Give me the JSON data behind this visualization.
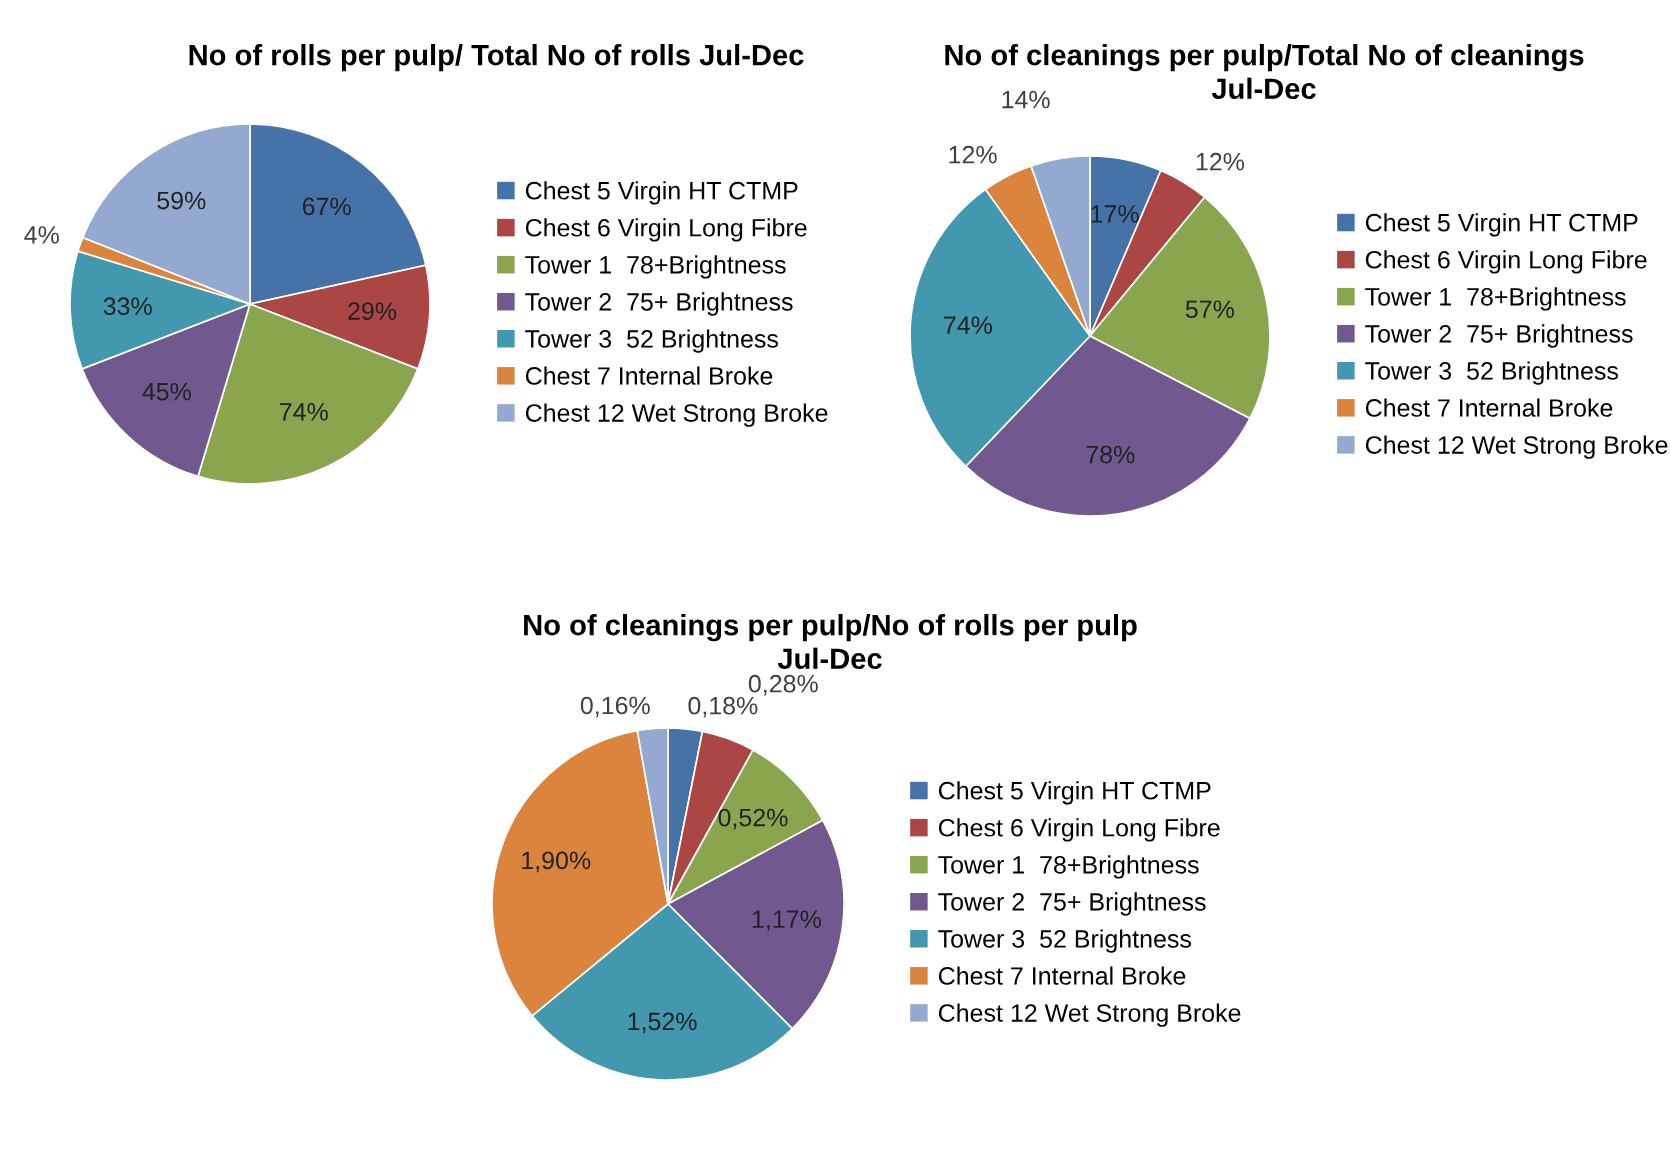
{
  "chart_data": [
    {
      "type": "pie",
      "title": "No of rolls per pulp/ Total No of rolls Jul-Dec",
      "categories": [
        "Chest 5 Virgin HT CTMP",
        "Chest 6 Virgin Long Fibre",
        "Tower 1  78+Brightness",
        "Tower 2  75+ Brightness",
        "Tower 3  52 Brightness",
        "Chest 7 Internal Broke",
        "Chest 12 Wet Strong Broke"
      ],
      "values": [
        67,
        29,
        74,
        45,
        33,
        4,
        59
      ],
      "value_labels": [
        "67%",
        "29%",
        "74%",
        "45%",
        "33%",
        "4%",
        "59%"
      ],
      "colors": [
        "#4572a7",
        "#aa4643",
        "#89a54e",
        "#71588f",
        "#4198af",
        "#db843d",
        "#93a9cf"
      ],
      "legend": "right"
    },
    {
      "type": "pie",
      "title": "No of cleanings per pulp/Total No of cleanings\nJul-Dec",
      "categories": [
        "Chest 5 Virgin HT CTMP",
        "Chest 6 Virgin Long Fibre",
        "Tower 1  78+Brightness",
        "Tower 2  75+ Brightness",
        "Tower 3  52 Brightness",
        "Chest 7 Internal Broke",
        "Chest 12 Wet Strong Broke"
      ],
      "values": [
        17,
        12,
        57,
        78,
        74,
        12,
        14
      ],
      "value_labels": [
        "17%",
        "12%",
        "57%",
        "78%",
        "74%",
        "12%",
        "14%"
      ],
      "colors": [
        "#4572a7",
        "#aa4643",
        "#89a54e",
        "#71588f",
        "#4198af",
        "#db843d",
        "#93a9cf"
      ],
      "legend": "right"
    },
    {
      "type": "pie",
      "title": "No of cleanings per pulp/No of rolls per pulp\nJul-Dec",
      "categories": [
        "Chest 5 Virgin HT CTMP",
        "Chest 6 Virgin Long Fibre",
        "Tower 1  78+Brightness",
        "Tower 2  75+ Brightness",
        "Tower 3  52 Brightness",
        "Chest 7 Internal Broke",
        "Chest 12 Wet Strong Broke"
      ],
      "values": [
        0.18,
        0.28,
        0.52,
        1.17,
        1.52,
        1.9,
        0.16
      ],
      "value_labels": [
        "0,18%",
        "0,28%",
        "0,52%",
        "1,17%",
        "1,52%",
        "1,90%",
        "0,16%"
      ],
      "colors": [
        "#4572a7",
        "#aa4643",
        "#89a54e",
        "#71588f",
        "#4198af",
        "#db843d",
        "#93a9cf"
      ],
      "legend": "right"
    }
  ]
}
